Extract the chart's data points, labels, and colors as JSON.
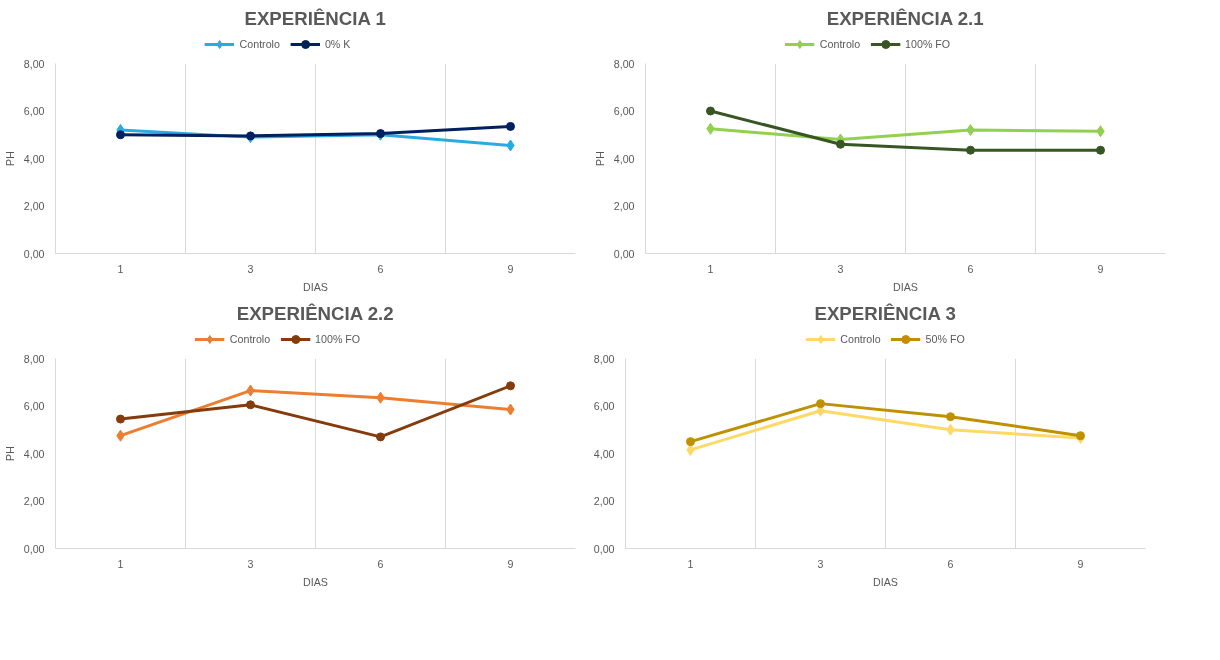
{
  "chart_data": [
    {
      "type": "line",
      "title": "EXPERIÊNCIA 1",
      "xlabel": "DIAS",
      "ylabel": "PH",
      "categories": [
        "1",
        "3",
        "6",
        "9"
      ],
      "ylim": [
        0,
        8
      ],
      "yticks": [
        {
          "value": 0,
          "label": "0,00"
        },
        {
          "value": 2,
          "label": "2,00"
        },
        {
          "value": 4,
          "label": "4,00"
        },
        {
          "value": 6,
          "label": "6,00"
        },
        {
          "value": 8,
          "label": "8,00"
        }
      ],
      "grid": "x",
      "legend": "top",
      "series": [
        {
          "name": "Controlo",
          "color": "#29abe2",
          "marker": "diamond",
          "values": [
            5.2,
            4.9,
            5.0,
            4.55
          ]
        },
        {
          "name": "0% K",
          "color": "#002060",
          "marker": "circle",
          "values": [
            5.0,
            4.95,
            5.05,
            5.35
          ]
        }
      ]
    },
    {
      "type": "line",
      "title": "EXPERIÊNCIA 2.1",
      "xlabel": "DIAS",
      "ylabel": "PH",
      "categories": [
        "1",
        "3",
        "6",
        "9"
      ],
      "ylim": [
        0,
        8
      ],
      "yticks": [
        {
          "value": 0,
          "label": "0,00"
        },
        {
          "value": 2,
          "label": "2,00"
        },
        {
          "value": 4,
          "label": "4,00"
        },
        {
          "value": 6,
          "label": "6,00"
        },
        {
          "value": 8,
          "label": "8,00"
        }
      ],
      "grid": "x",
      "legend": "top",
      "series": [
        {
          "name": "Controlo",
          "color": "#92d050",
          "marker": "diamond",
          "values": [
            5.25,
            4.8,
            5.2,
            5.15
          ]
        },
        {
          "name": "100% FO",
          "color": "#375623",
          "marker": "circle",
          "values": [
            6.0,
            4.6,
            4.35,
            4.35
          ]
        }
      ]
    },
    {
      "type": "line",
      "title": "EXPERIÊNCIA 2.2",
      "xlabel": "DIAS",
      "ylabel": "PH",
      "categories": [
        "1",
        "3",
        "6",
        "9"
      ],
      "ylim": [
        0,
        8
      ],
      "yticks": [
        {
          "value": 0,
          "label": "0,00"
        },
        {
          "value": 2,
          "label": "2,00"
        },
        {
          "value": 4,
          "label": "4,00"
        },
        {
          "value": 6,
          "label": "6,00"
        },
        {
          "value": 8,
          "label": "8,00"
        }
      ],
      "grid": "x",
      "legend": "top",
      "series": [
        {
          "name": "Controlo",
          "color": "#ed7d31",
          "marker": "diamond",
          "values": [
            4.75,
            6.65,
            6.35,
            5.85
          ]
        },
        {
          "name": "100% FO",
          "color": "#843c0c",
          "marker": "circle",
          "values": [
            5.45,
            6.05,
            4.7,
            6.85
          ]
        }
      ]
    },
    {
      "type": "line",
      "title": "EXPERIÊNCIA 3",
      "xlabel": "DIAS",
      "categories": [
        "1",
        "3",
        "6",
        "9"
      ],
      "ylim": [
        0,
        8
      ],
      "yticks": [
        {
          "value": 0,
          "label": "0,00"
        },
        {
          "value": 2,
          "label": "2,00"
        },
        {
          "value": 4,
          "label": "4,00"
        },
        {
          "value": 6,
          "label": "6,00"
        },
        {
          "value": 8,
          "label": "8,00"
        }
      ],
      "grid": "x",
      "legend": "top",
      "series": [
        {
          "name": "Controlo",
          "color": "#ffd966",
          "marker": "diamond",
          "values": [
            4.15,
            5.8,
            5.0,
            4.65
          ]
        },
        {
          "name": "50% FO",
          "color": "#bf9000",
          "marker": "circle",
          "values": [
            4.5,
            6.1,
            5.55,
            4.75
          ]
        }
      ]
    }
  ]
}
